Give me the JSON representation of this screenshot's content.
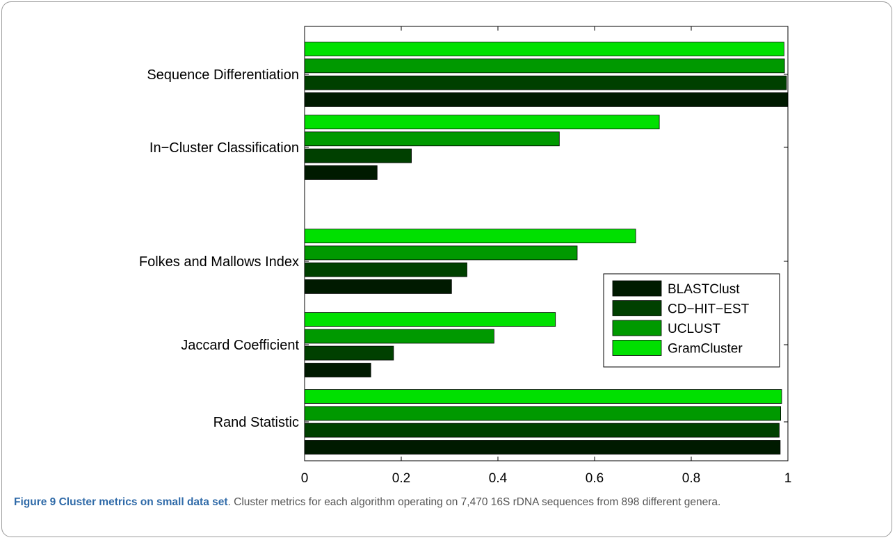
{
  "chart_data": {
    "type": "bar",
    "orientation": "horizontal",
    "categories": [
      "Rand Statistic",
      "Jaccard Coefficient",
      "Folkes and Mallows Index",
      "In−Cluster Classification",
      "Sequence Differentiation"
    ],
    "series": [
      {
        "name": "BLASTClust",
        "color": "#001a00",
        "values": [
          0.984,
          0.137,
          0.304,
          0.15,
          1.0
        ]
      },
      {
        "name": "CD−HIT−EST",
        "color": "#004000",
        "values": [
          0.982,
          0.184,
          0.336,
          0.221,
          0.997
        ]
      },
      {
        "name": "UCLUST",
        "color": "#009900",
        "values": [
          0.985,
          0.392,
          0.564,
          0.527,
          0.993
        ]
      },
      {
        "name": "GramCluster",
        "color": "#00e000",
        "values": [
          0.987,
          0.519,
          0.685,
          0.734,
          0.992
        ]
      }
    ],
    "xlim": [
      0,
      1
    ],
    "xticks": [
      "0",
      "0.2",
      "0.4",
      "0.6",
      "0.8",
      "1"
    ],
    "xlabel": "",
    "ylabel": "",
    "title": "",
    "legend": "right-middle",
    "grid": false
  },
  "caption": {
    "label": "Figure 9 Cluster metrics on small data set",
    "text": ". Cluster metrics for each algorithm operating on 7,470 16S rDNA sequences from 898 different genera."
  }
}
